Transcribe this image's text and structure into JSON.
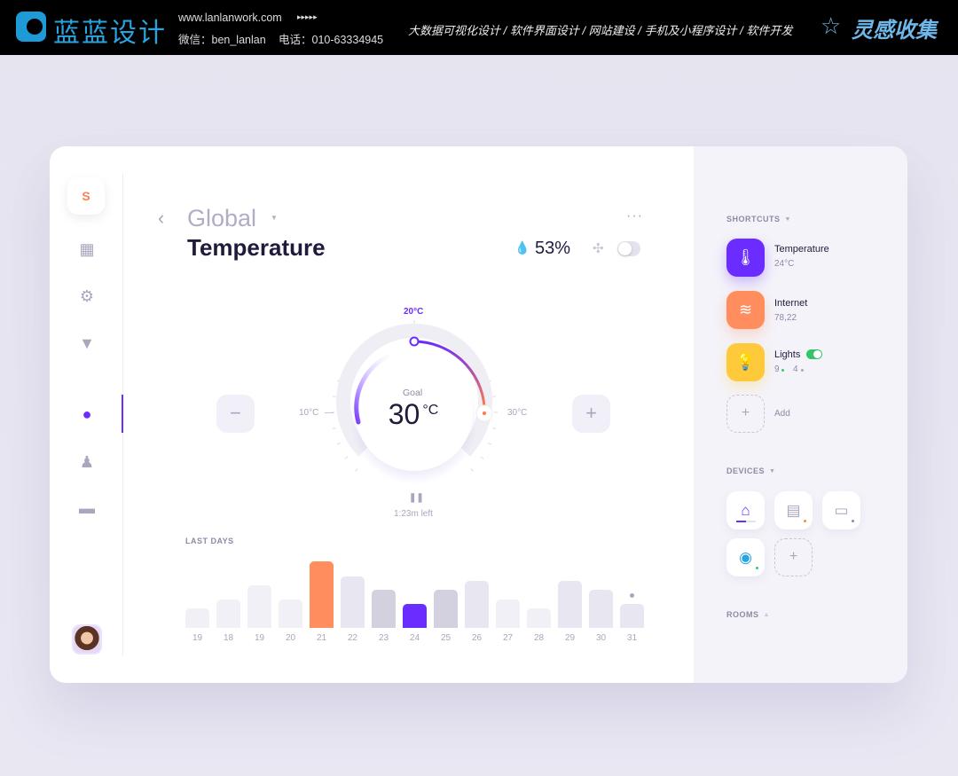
{
  "banner": {
    "logo": "蓝蓝设计",
    "url": "www.lanlanwork.com",
    "arrows": "▸▸▸▸▸",
    "wechat": "微信：ben_lanlan",
    "phone": "电话：010-63334945",
    "services": "大数据可视化设计 / 软件界面设计 / 网站建设 / 手机及小程序设计 / 软件开发",
    "brand": "灵感收集"
  },
  "sidebar": {
    "logo": "S",
    "items": [
      {
        "icon": "dashboard-icon"
      },
      {
        "icon": "gear-icon"
      },
      {
        "icon": "filter-icon"
      },
      {
        "icon": "location-pin-icon",
        "active": true
      },
      {
        "icon": "person-icon"
      },
      {
        "icon": "trash-icon"
      }
    ]
  },
  "header": {
    "location": "Global",
    "title": "Temperature",
    "humidity": "53%",
    "fan_on": false
  },
  "dial": {
    "top_label": "20°C",
    "left_label": "10°C",
    "right_label": "30°C",
    "goal_label": "Goal",
    "goal_value": "30",
    "goal_unit": "°C",
    "time_left": "1:23m left",
    "minus": "−",
    "plus": "+"
  },
  "chart_data": {
    "type": "bar",
    "title": "LAST DAYS",
    "categories": [
      "19",
      "18",
      "19",
      "20",
      "21",
      "22",
      "23",
      "24",
      "25",
      "26",
      "27",
      "28",
      "29",
      "30",
      "31"
    ],
    "values": [
      22,
      32,
      48,
      32,
      75,
      58,
      43,
      27,
      43,
      53,
      32,
      22,
      53,
      43,
      27
    ],
    "colors": [
      "#f1f0f6",
      "#f1f0f6",
      "#f1f0f6",
      "#f1f0f6",
      "#ff8d5e",
      "#e8e6f0",
      "#d3d0e0",
      "#6a2cff",
      "#d3d0e0",
      "#e8e6f0",
      "#f1f0f6",
      "#f1f0f6",
      "#e8e6f0",
      "#e8e6f0",
      "#e8e6f0"
    ]
  },
  "shortcuts": {
    "title": "SHORTCUTS",
    "items": [
      {
        "name": "Temperature",
        "value": "24°C",
        "color": "#6a2cff",
        "icon": "thermometer-icon"
      },
      {
        "name": "Internet",
        "value": "78,22",
        "color": "#ff8d5e",
        "icon": "wifi-icon"
      },
      {
        "name": "Lights",
        "on_count": "9",
        "off_count": "4",
        "color": "#ffc93c",
        "icon": "bulb-icon",
        "toggle_on": true
      }
    ],
    "add_label": "Add"
  },
  "devices": {
    "title": "DEVICES",
    "items": [
      {
        "icon": "vacuum-icon",
        "status": "#6a2cff"
      },
      {
        "icon": "fridge-icon",
        "status": "#ff8d2e"
      },
      {
        "icon": "monitor-icon",
        "status": "#8e8aa6"
      },
      {
        "icon": "webcam-icon",
        "status": "#2ecc71"
      }
    ]
  },
  "rooms": {
    "title": "ROOMS"
  }
}
